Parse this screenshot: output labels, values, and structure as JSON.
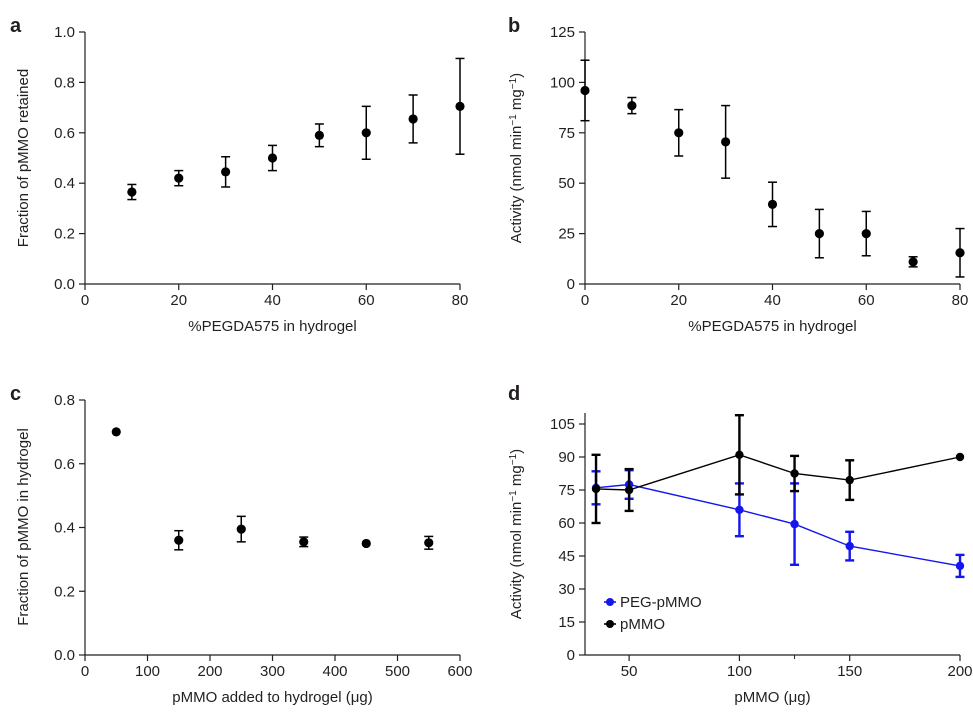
{
  "chart_data": [
    {
      "panel": "a",
      "type": "scatter",
      "xlabel": "%PEGDA575 in hydrogel",
      "ylabel": "Fraction of pMMO retained",
      "xlim": [
        0,
        80
      ],
      "ylim": [
        0,
        1.0
      ],
      "xticks": [
        "0",
        "20",
        "40",
        "60",
        "80"
      ],
      "yticks": [
        "0.0",
        "0.2",
        "0.4",
        "0.6",
        "0.8",
        "1.0"
      ],
      "series": [
        {
          "color": "#000000",
          "points": [
            {
              "x": 10,
              "y": 0.365,
              "err": 0.03
            },
            {
              "x": 20,
              "y": 0.42,
              "err": 0.03
            },
            {
              "x": 30,
              "y": 0.445,
              "err": 0.06
            },
            {
              "x": 40,
              "y": 0.5,
              "err": 0.05
            },
            {
              "x": 50,
              "y": 0.59,
              "err": 0.045
            },
            {
              "x": 60,
              "y": 0.6,
              "err": 0.105
            },
            {
              "x": 70,
              "y": 0.655,
              "err": 0.095
            },
            {
              "x": 80,
              "y": 0.705,
              "err": 0.19
            }
          ]
        }
      ],
      "grid": false
    },
    {
      "panel": "b",
      "type": "scatter",
      "xlabel": "%PEGDA575 in hydrogel",
      "ylabel_main": "Activity (nmol min",
      "ylabel_sup1": "−1",
      "ylabel_mid": " mg",
      "ylabel_sup2": "−1",
      "ylabel_end": ")",
      "xlim": [
        0,
        80
      ],
      "ylim": [
        0,
        125
      ],
      "xticks": [
        "0",
        "20",
        "40",
        "60",
        "80"
      ],
      "yticks": [
        "0",
        "25",
        "50",
        "75",
        "100",
        "125"
      ],
      "series": [
        {
          "color": "#000000",
          "points": [
            {
              "x": 0,
              "y": 96,
              "err": 15
            },
            {
              "x": 10,
              "y": 88.5,
              "err": 4
            },
            {
              "x": 20,
              "y": 75,
              "err": 11.5
            },
            {
              "x": 30,
              "y": 70.5,
              "err": 18
            },
            {
              "x": 40,
              "y": 39.5,
              "err": 11
            },
            {
              "x": 50,
              "y": 25,
              "err": 12
            },
            {
              "x": 60,
              "y": 25,
              "err": 11
            },
            {
              "x": 70,
              "y": 11,
              "err": 2.5
            },
            {
              "x": 80,
              "y": 15.5,
              "err": 12
            }
          ]
        }
      ],
      "grid": false
    },
    {
      "panel": "c",
      "type": "scatter",
      "xlabel_main": "pMMO added to hydrogel (",
      "xlabel_unit": "μg",
      "xlabel_end": ")",
      "ylabel": "Fraction of pMMO in hydrogel",
      "xlim": [
        0,
        600
      ],
      "ylim": [
        0,
        0.8
      ],
      "xticks": [
        "0",
        "100",
        "200",
        "300",
        "400",
        "500",
        "600"
      ],
      "yticks": [
        "0.0",
        "0.2",
        "0.4",
        "0.6",
        "0.8"
      ],
      "series": [
        {
          "color": "#000000",
          "points": [
            {
              "x": 50,
              "y": 0.7,
              "err": 0
            },
            {
              "x": 150,
              "y": 0.36,
              "err": 0.03
            },
            {
              "x": 250,
              "y": 0.395,
              "err": 0.04
            },
            {
              "x": 350,
              "y": 0.355,
              "err": 0.015
            },
            {
              "x": 450,
              "y": 0.35,
              "err": 0
            },
            {
              "x": 550,
              "y": 0.352,
              "err": 0.02
            }
          ]
        }
      ],
      "grid": false
    },
    {
      "panel": "d",
      "type": "line",
      "xlabel_main": "pMMO (",
      "xlabel_unit": "μg",
      "xlabel_end": ")",
      "ylabel_main": "Activity (nmol min",
      "ylabel_sup1": "−1",
      "ylabel_mid": " mg",
      "ylabel_sup2": "−1",
      "ylabel_end": ")",
      "xlim": [
        30,
        200
      ],
      "ylim": [
        0,
        110
      ],
      "xticks": [
        "50",
        "100",
        "150",
        "200"
      ],
      "xtick_values": [
        50,
        100,
        150,
        200
      ],
      "yticks": [
        "0",
        "15",
        "30",
        "45",
        "60",
        "75",
        "90",
        "105"
      ],
      "legend_position": "bottom-left",
      "series": [
        {
          "name": "PEG-pMMO",
          "color": "#1515ee",
          "points": [
            {
              "x": 35,
              "y": 76,
              "err": 7.5
            },
            {
              "x": 50,
              "y": 77.5,
              "err": 6.5
            },
            {
              "x": 100,
              "y": 66,
              "err": 12
            },
            {
              "x": 125,
              "y": 59.5,
              "err": 18.5
            },
            {
              "x": 150,
              "y": 49.5,
              "err": 6.5
            },
            {
              "x": 200,
              "y": 40.5,
              "err": 5
            }
          ]
        },
        {
          "name": "pMMO",
          "color": "#000000",
          "points": [
            {
              "x": 35,
              "y": 75.5,
              "err": 15.5
            },
            {
              "x": 50,
              "y": 75,
              "err": 9.5
            },
            {
              "x": 100,
              "y": 91,
              "err": 18
            },
            {
              "x": 125,
              "y": 82.5,
              "err": 8
            },
            {
              "x": 150,
              "y": 79.5,
              "err": 9
            },
            {
              "x": 200,
              "y": 90,
              "err": 0
            }
          ]
        }
      ],
      "grid": false
    }
  ]
}
